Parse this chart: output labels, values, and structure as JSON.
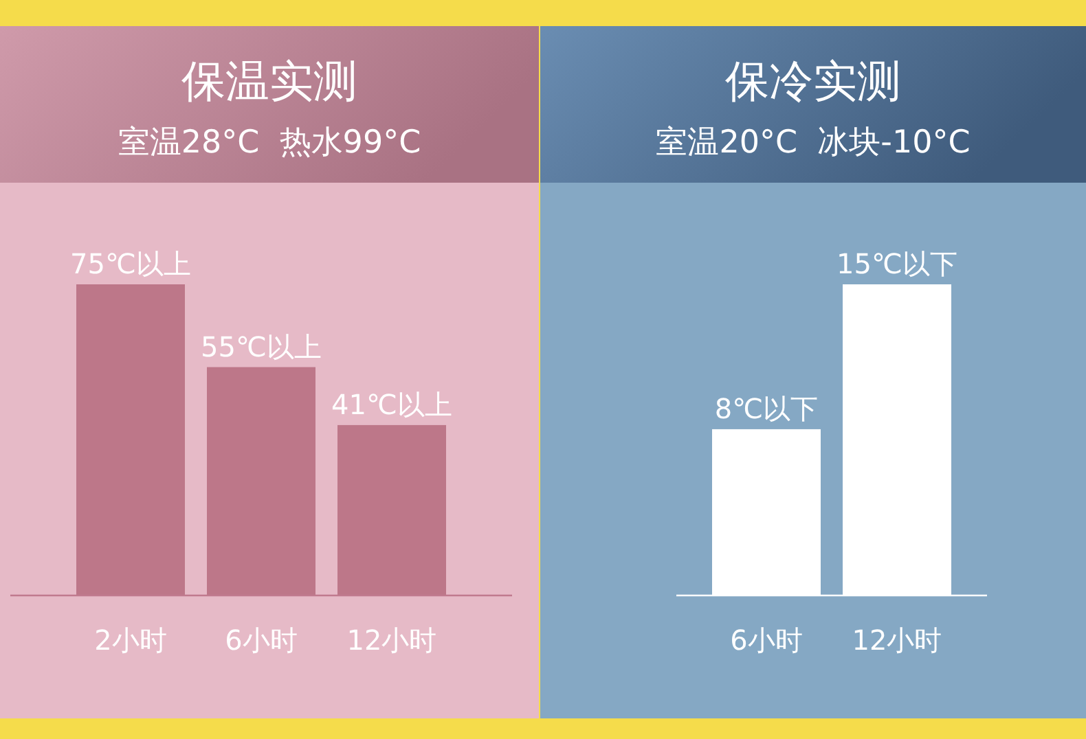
{
  "chart_data": [
    {
      "type": "bar",
      "title": "保温实测",
      "subtitle": "室温28°C  热水99°C",
      "categories": [
        "2小时",
        "6小时",
        "12小时"
      ],
      "values": [
        75,
        55,
        41
      ],
      "value_labels": [
        "75℃以上",
        "55℃以上",
        "41℃以上"
      ],
      "color": "#bd7789"
    },
    {
      "type": "bar",
      "title": "保冷实测",
      "subtitle": "室温20°C  冰块-10°C",
      "categories": [
        "6小时",
        "12小时"
      ],
      "values": [
        8,
        15
      ],
      "value_labels": [
        "8℃以下",
        "15℃以下"
      ],
      "color": "#ffffff"
    }
  ]
}
